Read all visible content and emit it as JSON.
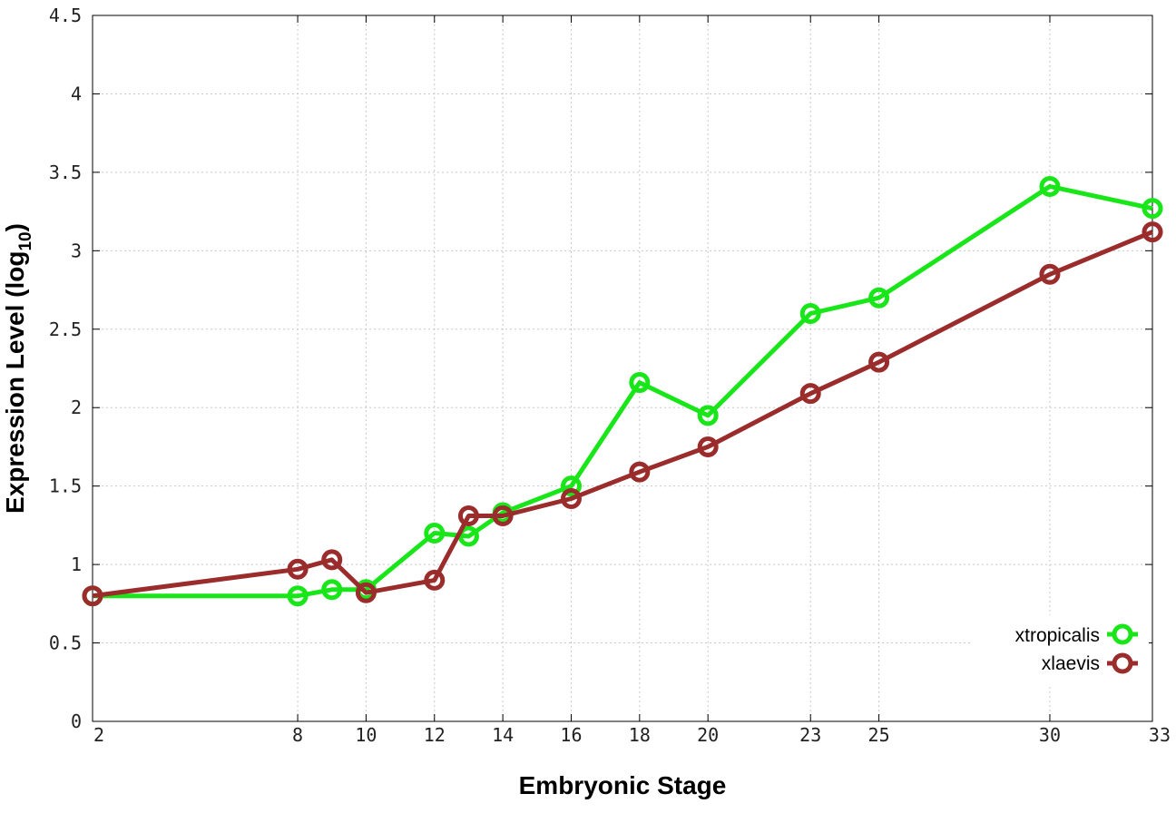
{
  "chart_data": {
    "type": "line",
    "xlabel": "Embryonic Stage",
    "ylabel_main": "Expression Level (log",
    "ylabel_sub": "10",
    "ylabel_close": ")",
    "xlim": [
      2,
      33
    ],
    "ylim": [
      0,
      4.5
    ],
    "x_ticks": [
      "2",
      "8",
      "10",
      "12",
      "14",
      "16",
      "18",
      "20",
      "23",
      "25",
      "30",
      "33"
    ],
    "x_tick_values": [
      2,
      8,
      10,
      12,
      14,
      16,
      18,
      20,
      23,
      25,
      30,
      33
    ],
    "y_ticks": [
      "0",
      "0.5",
      "1",
      "1.5",
      "2",
      "2.5",
      "3",
      "3.5",
      "4",
      "4.5"
    ],
    "y_tick_values": [
      0,
      0.5,
      1,
      1.5,
      2,
      2.5,
      3,
      3.5,
      4,
      4.5
    ],
    "grid": true,
    "legend_position": "bottom-right",
    "series": [
      {
        "name": "xtropicalis",
        "color": "#19e619",
        "x": [
          2,
          8,
          9,
          10,
          12,
          13,
          14,
          16,
          18,
          20,
          23,
          25,
          30,
          33
        ],
        "values": [
          0.8,
          0.8,
          0.84,
          0.84,
          1.2,
          1.18,
          1.33,
          1.5,
          2.16,
          1.95,
          2.6,
          2.7,
          3.41,
          3.27
        ]
      },
      {
        "name": "xlaevis",
        "color": "#9b2c2c",
        "x": [
          2,
          8,
          9,
          10,
          12,
          13,
          14,
          16,
          18,
          20,
          23,
          25,
          30,
          33
        ],
        "values": [
          0.8,
          0.97,
          1.03,
          0.82,
          0.9,
          1.31,
          1.31,
          1.42,
          1.59,
          1.75,
          2.09,
          2.29,
          2.85,
          3.12
        ]
      }
    ]
  }
}
